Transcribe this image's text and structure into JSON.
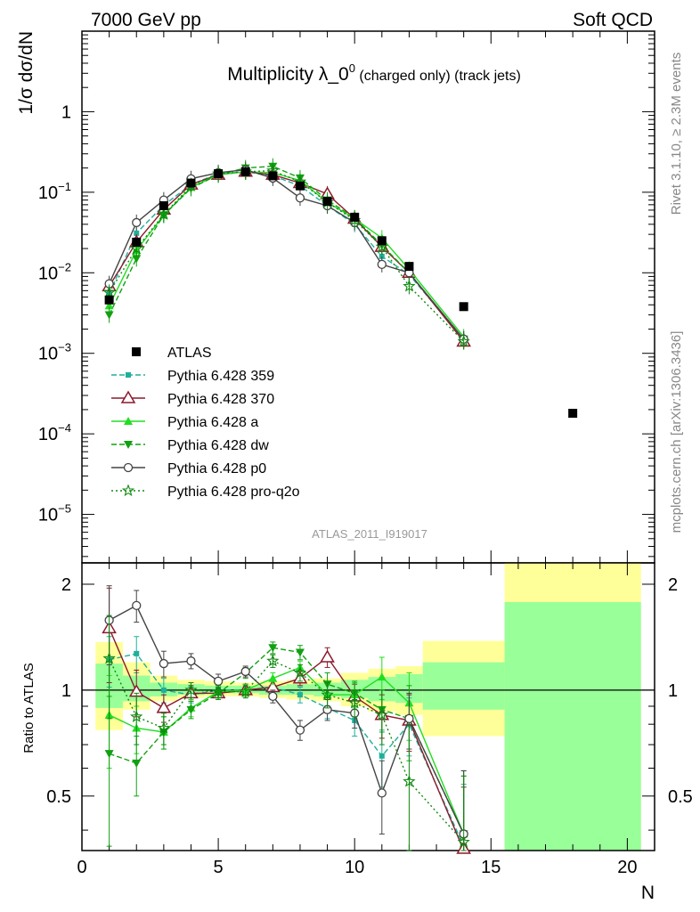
{
  "header": {
    "left": "7000 GeV pp",
    "right": "Soft QCD"
  },
  "side_text": {
    "rivet": "Rivet 3.1.10, ≥ 2.3M events",
    "mcplots": "mcplots.cern.ch [arXiv:1306.3436]"
  },
  "chart_data": [
    {
      "type": "line",
      "panel": "main",
      "title": "Multiplicity λ_0",
      "title_sup": "0",
      "title_suffix": " (charged only) (track jets)",
      "ylabel": "1/σ dσ/dN",
      "yscale": "log",
      "ylim": [
        2.5e-06,
        10
      ],
      "xlim": [
        0,
        21
      ],
      "watermark": "ATLAS_2011_I919017",
      "legend_position": "lower-left",
      "y_tick_labels": [
        {
          "v": 1,
          "text": "1"
        },
        {
          "v": 0.1,
          "base": "10",
          "exp": "−1"
        },
        {
          "v": 0.01,
          "base": "10",
          "exp": "−2"
        },
        {
          "v": 0.001,
          "base": "10",
          "exp": "−3"
        },
        {
          "v": 0.0001,
          "base": "10",
          "exp": "−4"
        },
        {
          "v": 1e-05,
          "base": "10",
          "exp": "−5"
        }
      ],
      "series": [
        {
          "name": "ATLAS",
          "color": "#000000",
          "marker": "square",
          "dash": "none",
          "x": [
            1,
            2,
            3,
            4,
            5,
            6,
            7,
            8,
            9,
            10,
            11,
            12,
            14,
            18
          ],
          "y": [
            0.0046,
            0.024,
            0.068,
            0.13,
            0.17,
            0.18,
            0.16,
            0.12,
            0.077,
            0.049,
            0.025,
            0.012,
            0.0038,
            0.00018
          ]
        },
        {
          "name": "Pythia 6.428 359",
          "color": "#1fb09a",
          "marker": "square-small",
          "dash": "6,3",
          "x": [
            1,
            2,
            3,
            4,
            5,
            6,
            7,
            8,
            9,
            10,
            11,
            12,
            14
          ],
          "y": [
            0.0055,
            0.031,
            0.069,
            0.125,
            0.17,
            0.18,
            0.16,
            0.12,
            0.068,
            0.04,
            0.016,
            0.0095,
            0.0015
          ]
        },
        {
          "name": "Pythia 6.428 370",
          "color": "#8c1a2c",
          "marker": "triangle-open",
          "dash": "none",
          "x": [
            1,
            2,
            3,
            4,
            5,
            6,
            7,
            8,
            9,
            10,
            11,
            12,
            14
          ],
          "y": [
            0.0068,
            0.024,
            0.061,
            0.125,
            0.165,
            0.18,
            0.165,
            0.13,
            0.095,
            0.047,
            0.021,
            0.01,
            0.0014
          ]
        },
        {
          "name": "Pythia 6.428 a",
          "color": "#22dd22",
          "marker": "triangle",
          "dash": "none",
          "x": [
            1,
            2,
            3,
            4,
            5,
            6,
            7,
            8,
            9,
            10,
            11,
            12,
            14
          ],
          "y": [
            0.0039,
            0.019,
            0.052,
            0.115,
            0.165,
            0.18,
            0.175,
            0.14,
            0.075,
            0.047,
            0.027,
            0.011,
            0.0016
          ]
        },
        {
          "name": "Pythia 6.428 dw",
          "color": "#11a011",
          "marker": "triangle-down",
          "dash": "6,3",
          "x": [
            1,
            2,
            3,
            4,
            5,
            6,
            7,
            8,
            9,
            10,
            11,
            12,
            14
          ],
          "y": [
            0.003,
            0.015,
            0.052,
            0.112,
            0.165,
            0.2,
            0.21,
            0.15,
            0.08,
            0.048,
            0.022,
            0.01,
            0.0015
          ]
        },
        {
          "name": "Pythia 6.428 p0",
          "color": "#444444",
          "marker": "circle-open",
          "dash": "none",
          "x": [
            1,
            2,
            3,
            4,
            5,
            6,
            7,
            8,
            9,
            10,
            11,
            12,
            14
          ],
          "y": [
            0.0073,
            0.042,
            0.08,
            0.147,
            0.175,
            0.19,
            0.15,
            0.085,
            0.068,
            0.042,
            0.0127,
            0.01,
            0.0015
          ]
        },
        {
          "name": "Pythia 6.428 pro-q2o",
          "color": "#0e8a0e",
          "marker": "star",
          "dash": "2,3",
          "x": [
            1,
            2,
            3,
            4,
            5,
            6,
            7,
            8,
            9,
            10,
            11,
            12,
            14
          ],
          "y": [
            0.0057,
            0.02,
            0.053,
            0.12,
            0.17,
            0.18,
            0.185,
            0.135,
            0.075,
            0.045,
            0.021,
            0.0068,
            0.0014
          ]
        }
      ]
    },
    {
      "type": "line",
      "panel": "ratio",
      "ylabel": "Ratio to ATLAS",
      "xlabel": "N",
      "yscale": "log",
      "ylim": [
        0.35,
        2.3
      ],
      "xlim": [
        0,
        21
      ],
      "x_ticks": [
        0,
        5,
        10,
        15,
        20
      ],
      "y_ticks": [
        0.5,
        1,
        2
      ],
      "reference_line": 1,
      "uncertainty_bands": [
        {
          "x0": 0.5,
          "x1": 1.5,
          "y_lo": 0.77,
          "y_hi": 1.37,
          "g_lo": 0.89,
          "g_hi": 1.19
        },
        {
          "x0": 1.5,
          "x1": 2.5,
          "y_lo": 0.88,
          "y_hi": 1.2,
          "g_lo": 0.93,
          "g_hi": 1.1
        },
        {
          "x0": 2.5,
          "x1": 3.5,
          "y_lo": 0.93,
          "y_hi": 1.1,
          "g_lo": 0.96,
          "g_hi": 1.05
        },
        {
          "x0": 3.5,
          "x1": 4.5,
          "y_lo": 0.95,
          "y_hi": 1.07,
          "g_lo": 0.97,
          "g_hi": 1.04
        },
        {
          "x0": 4.5,
          "x1": 5.5,
          "y_lo": 0.96,
          "y_hi": 1.06,
          "g_lo": 0.98,
          "g_hi": 1.03
        },
        {
          "x0": 5.5,
          "x1": 6.5,
          "y_lo": 0.96,
          "y_hi": 1.05,
          "g_lo": 0.98,
          "g_hi": 1.03
        },
        {
          "x0": 6.5,
          "x1": 7.5,
          "y_lo": 0.95,
          "y_hi": 1.06,
          "g_lo": 0.97,
          "g_hi": 1.03
        },
        {
          "x0": 7.5,
          "x1": 8.5,
          "y_lo": 0.94,
          "y_hi": 1.07,
          "g_lo": 0.97,
          "g_hi": 1.04
        },
        {
          "x0": 8.5,
          "x1": 9.5,
          "y_lo": 0.93,
          "y_hi": 1.08,
          "g_lo": 0.96,
          "g_hi": 1.05
        },
        {
          "x0": 9.5,
          "x1": 10.5,
          "y_lo": 0.9,
          "y_hi": 1.12,
          "g_lo": 0.95,
          "g_hi": 1.07
        },
        {
          "x0": 10.5,
          "x1": 11.5,
          "y_lo": 0.87,
          "y_hi": 1.15,
          "g_lo": 0.93,
          "g_hi": 1.09
        },
        {
          "x0": 11.5,
          "x1": 12.5,
          "y_lo": 0.85,
          "y_hi": 1.17,
          "g_lo": 0.92,
          "g_hi": 1.11
        },
        {
          "x0": 12.5,
          "x1": 15.5,
          "y_lo": 0.74,
          "y_hi": 1.38,
          "g_lo": 0.88,
          "g_hi": 1.2
        },
        {
          "x0": 15.5,
          "x1": 20.5,
          "y_lo": 0.2,
          "y_hi": 2.5,
          "g_lo": 0.2,
          "g_hi": 1.78
        }
      ],
      "series": [
        {
          "name": "Pythia 6.428 359",
          "color": "#1fb09a",
          "marker": "square-small",
          "dash": "6,3",
          "x": [
            1,
            2,
            3,
            4,
            5,
            6,
            7,
            8,
            9,
            10,
            11,
            12,
            14
          ],
          "y": [
            1.22,
            1.27,
            1.0,
            0.97,
            1.0,
            1.0,
            1.02,
            0.97,
            0.89,
            0.82,
            0.65,
            0.8,
            0.36
          ],
          "err": [
            0.2,
            0.15,
            0.08,
            0.05,
            0.04,
            0.04,
            0.04,
            0.05,
            0.06,
            0.08,
            0.12,
            0.15,
            0.18
          ]
        },
        {
          "name": "Pythia 6.428 370",
          "color": "#8c1a2c",
          "marker": "triangle-open",
          "dash": "none",
          "x": [
            1,
            2,
            3,
            4,
            5,
            6,
            7,
            8,
            9,
            10,
            11,
            12,
            14
          ],
          "y": [
            1.5,
            0.99,
            0.89,
            0.98,
            0.98,
            1.0,
            1.02,
            1.08,
            1.24,
            0.96,
            0.85,
            0.82,
            0.35
          ],
          "err": [
            0.45,
            0.15,
            0.08,
            0.05,
            0.04,
            0.04,
            0.04,
            0.05,
            0.08,
            0.08,
            0.12,
            0.15,
            0.18
          ]
        },
        {
          "name": "Pythia 6.428 a",
          "color": "#22dd22",
          "marker": "triangle",
          "dash": "none",
          "x": [
            1,
            2,
            3,
            4,
            5,
            6,
            7,
            8,
            9,
            10,
            11,
            12,
            14
          ],
          "y": [
            0.85,
            0.78,
            0.76,
            0.89,
            0.99,
            1.0,
            1.08,
            1.16,
            0.97,
            0.97,
            1.09,
            0.92,
            0.39
          ],
          "err": [
            0.25,
            0.12,
            0.08,
            0.05,
            0.04,
            0.04,
            0.04,
            0.05,
            0.08,
            0.08,
            0.15,
            0.2,
            0.18
          ]
        },
        {
          "name": "Pythia 6.428 dw",
          "color": "#11a011",
          "marker": "triangle-down",
          "dash": "6,3",
          "x": [
            1,
            2,
            3,
            4,
            5,
            6,
            7,
            8,
            9,
            10,
            11,
            12,
            14
          ],
          "y": [
            0.66,
            0.62,
            0.76,
            0.88,
            0.98,
            1.12,
            1.32,
            1.28,
            1.04,
            0.98,
            0.88,
            0.83,
            0.39
          ],
          "err": [
            0.3,
            0.12,
            0.08,
            0.05,
            0.04,
            0.04,
            0.05,
            0.06,
            0.08,
            0.08,
            0.12,
            0.2,
            0.2
          ]
        },
        {
          "name": "Pythia 6.428 p0",
          "color": "#444444",
          "marker": "circle-open",
          "dash": "none",
          "x": [
            1,
            2,
            3,
            4,
            5,
            6,
            7,
            8,
            9,
            10,
            11,
            12,
            14
          ],
          "y": [
            1.58,
            1.74,
            1.19,
            1.21,
            1.06,
            1.13,
            0.96,
            0.77,
            0.88,
            0.86,
            0.51,
            0.83,
            0.39
          ],
          "err": [
            0.4,
            0.18,
            0.1,
            0.06,
            0.05,
            0.04,
            0.04,
            0.05,
            0.06,
            0.08,
            0.12,
            0.15,
            0.2
          ]
        },
        {
          "name": "Pythia 6.428 pro-q2o",
          "color": "#0e8a0e",
          "marker": "star",
          "dash": "2,3",
          "x": [
            1,
            2,
            3,
            4,
            5,
            6,
            7,
            8,
            9,
            10,
            11,
            12,
            14
          ],
          "y": [
            1.23,
            0.84,
            0.78,
            1.0,
            0.99,
            0.99,
            1.21,
            1.12,
            0.97,
            0.92,
            0.85,
            0.55,
            0.37
          ],
          "err": [
            0.4,
            0.14,
            0.08,
            0.05,
            0.04,
            0.04,
            0.05,
            0.06,
            0.08,
            0.08,
            0.15,
            0.25,
            0.2
          ]
        }
      ]
    }
  ]
}
